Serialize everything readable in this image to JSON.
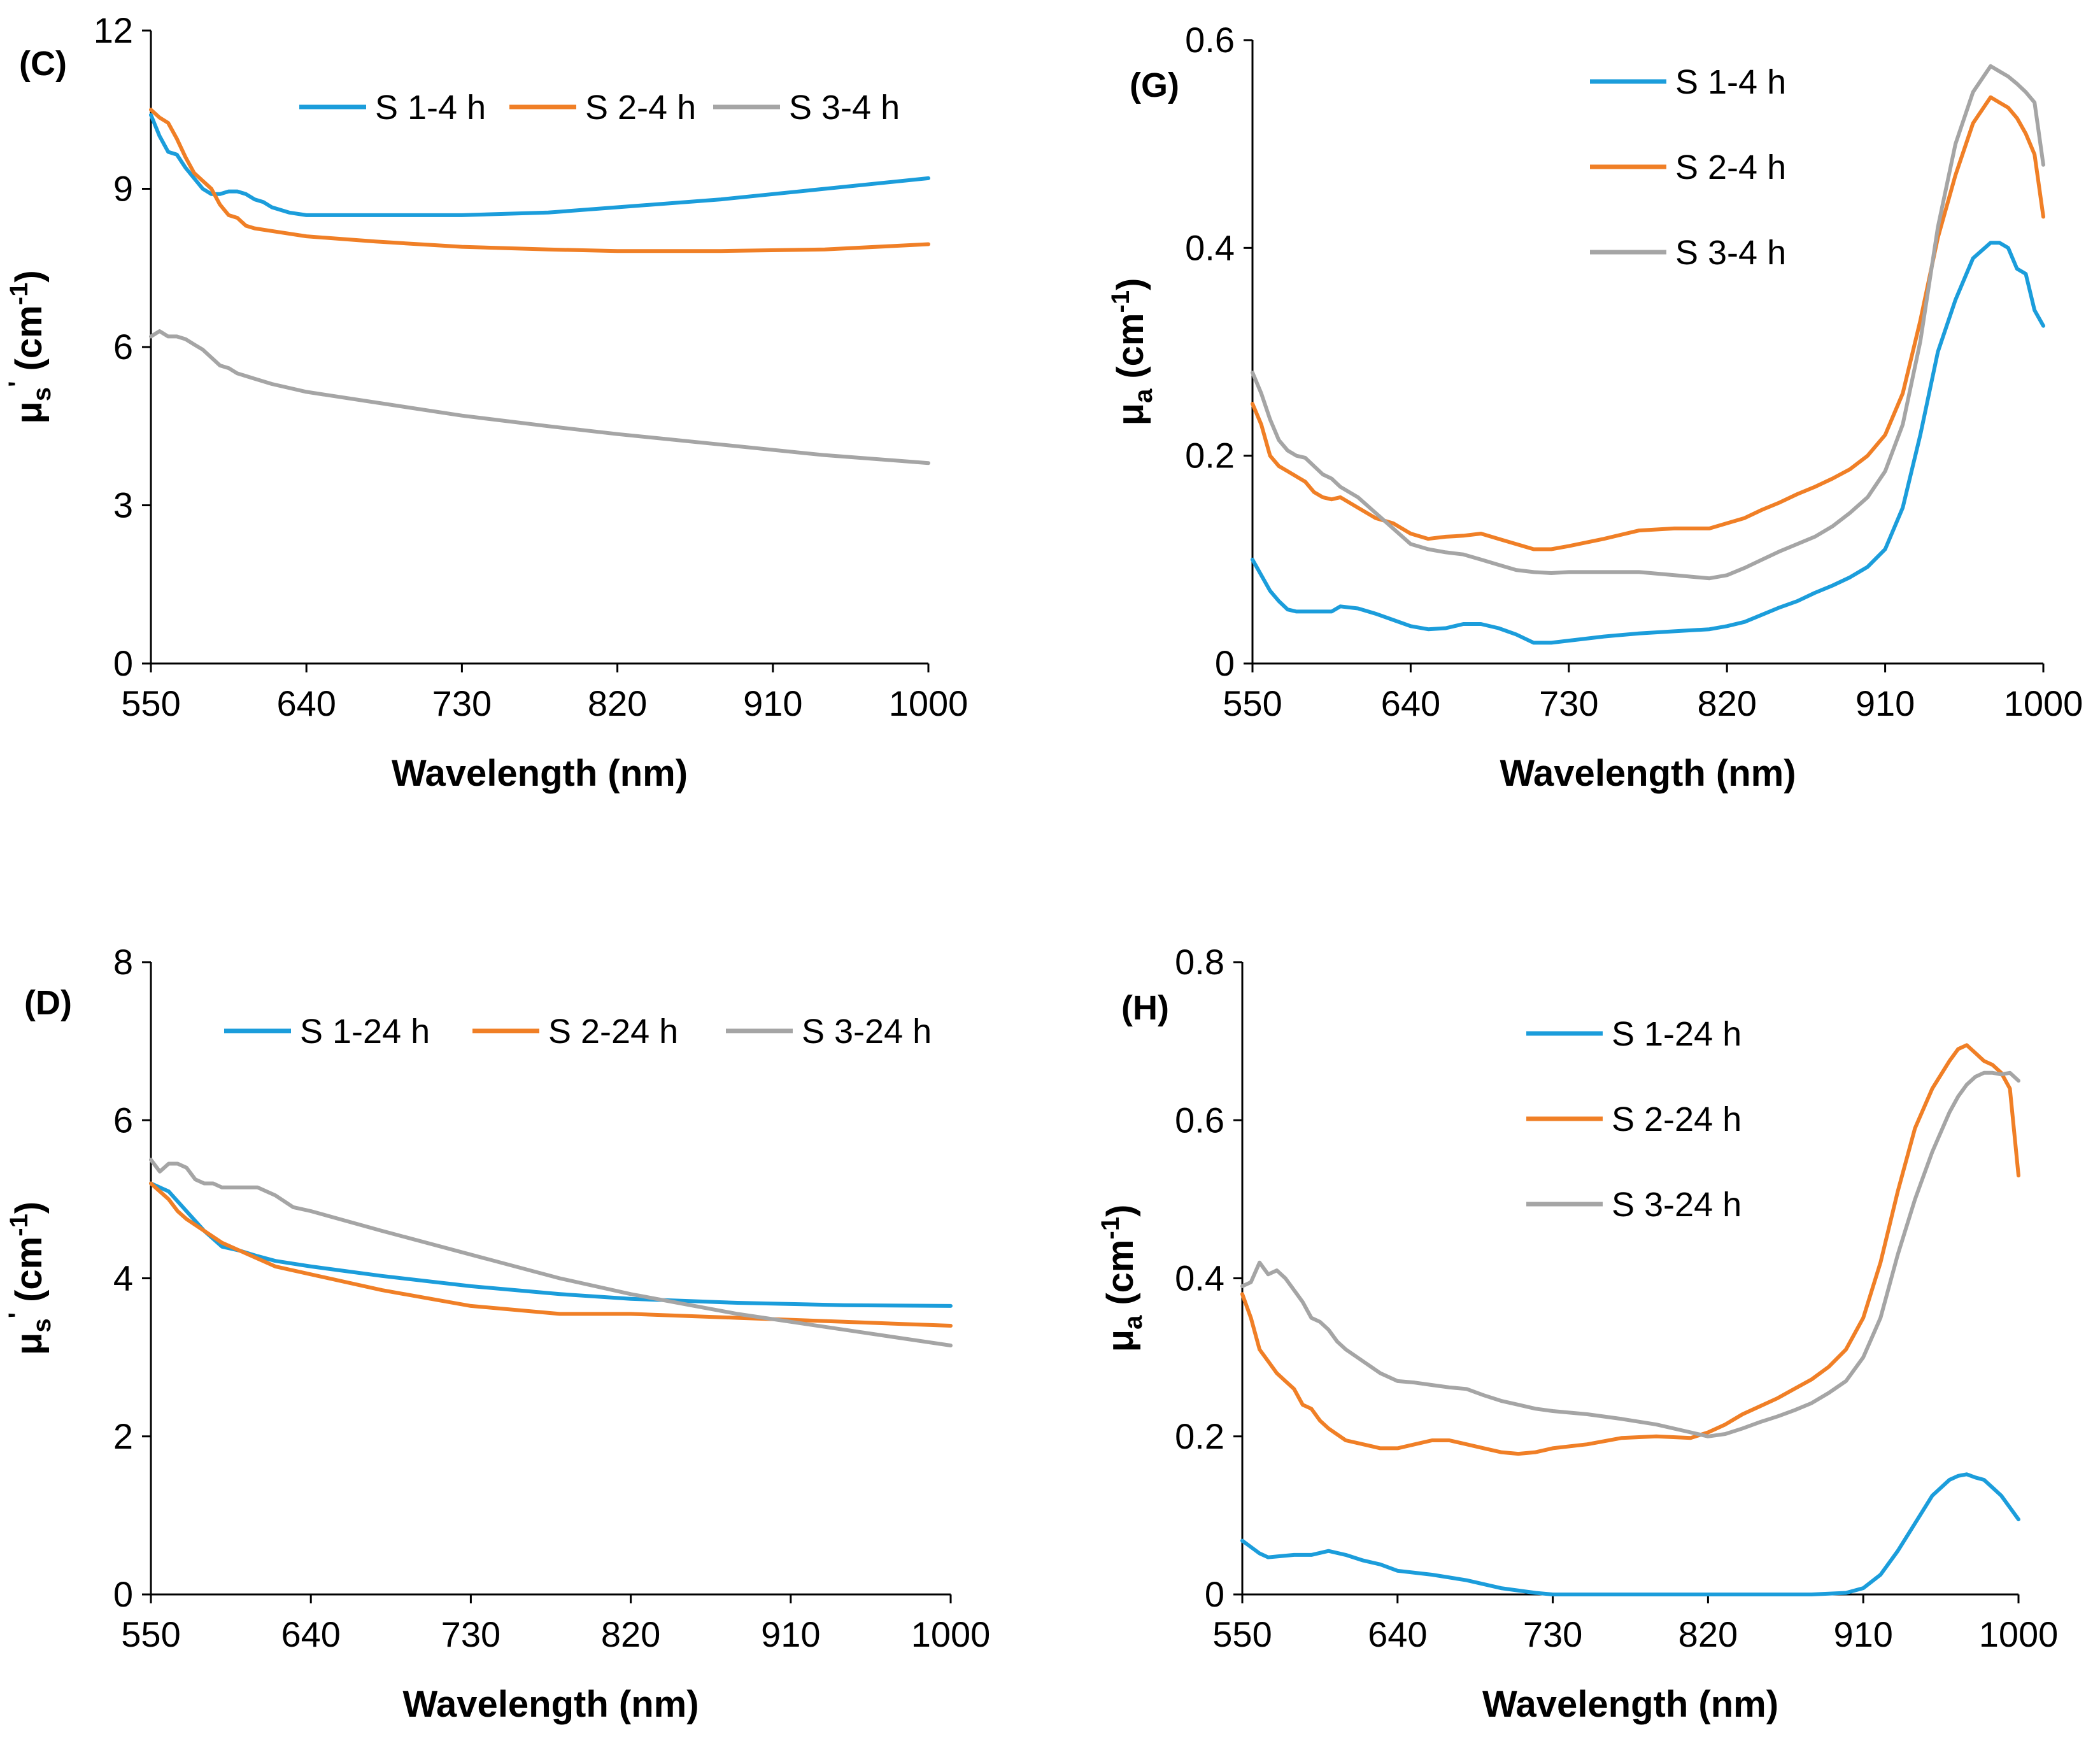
{
  "colors": {
    "blue": "#1b9ddb",
    "orange": "#f07f26",
    "gray": "#a5a5a5"
  },
  "chart_data": [
    {
      "type": "line",
      "panel_label": "(C)",
      "xlabel": "Wavelength (nm)",
      "ylabel": {
        "main": "μ",
        "sub": "s",
        "prime": "'",
        "unit": "(cm",
        "exp": "-1",
        "close": ")"
      },
      "xlim": [
        550,
        1000
      ],
      "ylim": [
        0,
        12
      ],
      "xticks": [
        "550",
        "640",
        "730",
        "820",
        "910",
        "1000"
      ],
      "yticks": [
        "0",
        "3",
        "6",
        "9",
        "12"
      ],
      "legend_position": "top-horizontal",
      "series": [
        {
          "name": "S 1-4 h",
          "color": "#1b9ddb",
          "x": [
            550,
            555,
            560,
            565,
            570,
            575,
            580,
            585,
            590,
            595,
            600,
            605,
            610,
            615,
            620,
            625,
            630,
            640,
            680,
            730,
            780,
            820,
            880,
            940,
            1000
          ],
          "y": [
            10.4,
            10.0,
            9.7,
            9.65,
            9.4,
            9.2,
            9.0,
            8.9,
            8.9,
            8.95,
            8.95,
            8.9,
            8.8,
            8.75,
            8.65,
            8.6,
            8.55,
            8.5,
            8.5,
            8.5,
            8.55,
            8.65,
            8.8,
            9.0,
            9.2
          ]
        },
        {
          "name": "S 2-4 h",
          "color": "#f07f26",
          "x": [
            550,
            555,
            560,
            565,
            570,
            575,
            580,
            585,
            590,
            595,
            600,
            605,
            610,
            620,
            640,
            680,
            730,
            780,
            820,
            880,
            940,
            1000
          ],
          "y": [
            10.5,
            10.35,
            10.25,
            9.95,
            9.6,
            9.3,
            9.15,
            9.0,
            8.7,
            8.5,
            8.45,
            8.3,
            8.25,
            8.2,
            8.1,
            8.0,
            7.9,
            7.85,
            7.82,
            7.82,
            7.85,
            7.95
          ]
        },
        {
          "name": "S 3-4 h",
          "color": "#a5a5a5",
          "x": [
            550,
            555,
            560,
            565,
            570,
            575,
            580,
            585,
            590,
            595,
            600,
            610,
            620,
            640,
            680,
            730,
            780,
            820,
            880,
            940,
            1000
          ],
          "y": [
            6.2,
            6.3,
            6.2,
            6.2,
            6.15,
            6.05,
            5.95,
            5.8,
            5.65,
            5.6,
            5.5,
            5.4,
            5.3,
            5.15,
            4.95,
            4.7,
            4.5,
            4.35,
            4.15,
            3.95,
            3.8
          ]
        }
      ]
    },
    {
      "type": "line",
      "panel_label": "(G)",
      "xlabel": "Wavelength (nm)",
      "ylabel": {
        "main": "μ",
        "sub": "a",
        "prime": "",
        "unit": "(cm",
        "exp": "-1",
        "close": ")"
      },
      "xlim": [
        550,
        1000
      ],
      "ylim": [
        0,
        0.6
      ],
      "xticks": [
        "550",
        "640",
        "730",
        "820",
        "910",
        "1000"
      ],
      "yticks": [
        "0",
        "0.2",
        "0.4",
        "0.6"
      ],
      "legend_position": "top-right-vertical",
      "series": [
        {
          "name": "S 1-4 h",
          "color": "#1b9ddb",
          "x": [
            550,
            555,
            560,
            565,
            570,
            575,
            580,
            585,
            590,
            595,
            600,
            610,
            620,
            630,
            640,
            650,
            660,
            670,
            680,
            690,
            700,
            710,
            720,
            730,
            750,
            770,
            790,
            810,
            820,
            830,
            840,
            850,
            860,
            870,
            880,
            890,
            900,
            910,
            920,
            930,
            940,
            950,
            960,
            970,
            975,
            980,
            985,
            990,
            995,
            1000
          ],
          "y": [
            0.1,
            0.085,
            0.07,
            0.06,
            0.052,
            0.05,
            0.05,
            0.05,
            0.05,
            0.05,
            0.055,
            0.053,
            0.048,
            0.042,
            0.036,
            0.033,
            0.034,
            0.038,
            0.038,
            0.034,
            0.028,
            0.02,
            0.02,
            0.022,
            0.026,
            0.029,
            0.031,
            0.033,
            0.036,
            0.04,
            0.047,
            0.054,
            0.06,
            0.068,
            0.075,
            0.083,
            0.093,
            0.11,
            0.15,
            0.22,
            0.3,
            0.35,
            0.39,
            0.405,
            0.405,
            0.4,
            0.38,
            0.375,
            0.34,
            0.325
          ]
        },
        {
          "name": "S 2-4 h",
          "color": "#f07f26",
          "x": [
            550,
            555,
            560,
            565,
            570,
            575,
            580,
            585,
            590,
            595,
            600,
            610,
            620,
            630,
            640,
            650,
            660,
            670,
            680,
            690,
            700,
            710,
            720,
            730,
            750,
            770,
            790,
            810,
            820,
            830,
            840,
            850,
            860,
            870,
            880,
            890,
            900,
            910,
            920,
            930,
            940,
            950,
            960,
            970,
            975,
            980,
            985,
            990,
            995,
            1000
          ],
          "y": [
            0.25,
            0.23,
            0.2,
            0.19,
            0.185,
            0.18,
            0.175,
            0.165,
            0.16,
            0.158,
            0.16,
            0.15,
            0.14,
            0.135,
            0.125,
            0.12,
            0.122,
            0.123,
            0.125,
            0.12,
            0.115,
            0.11,
            0.11,
            0.113,
            0.12,
            0.128,
            0.13,
            0.13,
            0.135,
            0.14,
            0.148,
            0.155,
            0.163,
            0.17,
            0.178,
            0.187,
            0.2,
            0.22,
            0.26,
            0.33,
            0.41,
            0.47,
            0.52,
            0.545,
            0.54,
            0.535,
            0.525,
            0.51,
            0.49,
            0.43
          ]
        },
        {
          "name": "S 3-4 h",
          "color": "#a5a5a5",
          "x": [
            550,
            555,
            560,
            565,
            570,
            575,
            580,
            585,
            590,
            595,
            600,
            610,
            620,
            630,
            640,
            650,
            660,
            670,
            680,
            690,
            700,
            710,
            720,
            730,
            750,
            770,
            790,
            810,
            820,
            830,
            840,
            850,
            860,
            870,
            880,
            890,
            900,
            910,
            920,
            930,
            940,
            950,
            960,
            970,
            975,
            980,
            985,
            990,
            995,
            1000
          ],
          "y": [
            0.28,
            0.26,
            0.235,
            0.215,
            0.205,
            0.2,
            0.198,
            0.19,
            0.182,
            0.178,
            0.17,
            0.16,
            0.145,
            0.13,
            0.115,
            0.11,
            0.107,
            0.105,
            0.1,
            0.095,
            0.09,
            0.088,
            0.087,
            0.088,
            0.088,
            0.088,
            0.085,
            0.082,
            0.085,
            0.092,
            0.1,
            0.108,
            0.115,
            0.122,
            0.132,
            0.145,
            0.16,
            0.185,
            0.23,
            0.31,
            0.42,
            0.5,
            0.55,
            0.575,
            0.57,
            0.565,
            0.558,
            0.55,
            0.54,
            0.48
          ]
        }
      ]
    },
    {
      "type": "line",
      "panel_label": "(D)",
      "xlabel": "Wavelength (nm)",
      "ylabel": {
        "main": "μ",
        "sub": "s",
        "prime": "'",
        "unit": "(cm",
        "exp": "-1",
        "close": ")"
      },
      "xlim": [
        550,
        1000
      ],
      "ylim": [
        0,
        8
      ],
      "xticks": [
        "550",
        "640",
        "730",
        "820",
        "910",
        "1000"
      ],
      "yticks": [
        "0",
        "2",
        "4",
        "6",
        "8"
      ],
      "legend_position": "top-horizontal",
      "series": [
        {
          "name": "S 1-24 h",
          "color": "#1b9ddb",
          "x": [
            550,
            560,
            570,
            580,
            590,
            600,
            610,
            620,
            640,
            680,
            730,
            780,
            820,
            880,
            940,
            1000
          ],
          "y": [
            5.2,
            5.1,
            4.85,
            4.6,
            4.4,
            4.35,
            4.28,
            4.22,
            4.15,
            4.03,
            3.9,
            3.8,
            3.74,
            3.69,
            3.66,
            3.65
          ]
        },
        {
          "name": "S 2-24 h",
          "color": "#f07f26",
          "x": [
            550,
            560,
            565,
            570,
            580,
            590,
            600,
            610,
            620,
            640,
            680,
            730,
            780,
            820,
            880,
            940,
            1000
          ],
          "y": [
            5.2,
            5.0,
            4.85,
            4.75,
            4.6,
            4.45,
            4.35,
            4.25,
            4.15,
            4.05,
            3.85,
            3.65,
            3.55,
            3.55,
            3.5,
            3.45,
            3.4
          ]
        },
        {
          "name": "S 3-24 h",
          "color": "#a5a5a5",
          "x": [
            550,
            555,
            560,
            565,
            570,
            575,
            580,
            585,
            590,
            600,
            610,
            620,
            630,
            640,
            680,
            730,
            780,
            820,
            880,
            940,
            1000
          ],
          "y": [
            5.5,
            5.35,
            5.45,
            5.45,
            5.4,
            5.25,
            5.2,
            5.2,
            5.15,
            5.15,
            5.15,
            5.05,
            4.9,
            4.85,
            4.6,
            4.3,
            4.0,
            3.8,
            3.55,
            3.35,
            3.15
          ]
        }
      ]
    },
    {
      "type": "line",
      "panel_label": "(H)",
      "xlabel": "Wavelength (nm)",
      "ylabel": {
        "main": "μ",
        "sub": "a",
        "prime": "",
        "unit": "(cm",
        "exp": "-1",
        "close": ")"
      },
      "xlim": [
        550,
        1000
      ],
      "ylim": [
        0,
        0.8
      ],
      "xticks": [
        "550",
        "640",
        "730",
        "820",
        "910",
        "1000"
      ],
      "yticks": [
        "0",
        "0.2",
        "0.4",
        "0.6",
        "0.8"
      ],
      "legend_position": "top-right-vertical",
      "series": [
        {
          "name": "S 1-24 h",
          "color": "#1b9ddb",
          "x": [
            550,
            555,
            560,
            565,
            570,
            580,
            590,
            600,
            610,
            620,
            630,
            640,
            660,
            680,
            700,
            720,
            730,
            780,
            830,
            880,
            900,
            910,
            920,
            930,
            940,
            950,
            960,
            965,
            970,
            975,
            980,
            985,
            990,
            995,
            1000
          ],
          "y": [
            0.068,
            0.06,
            0.052,
            0.047,
            0.048,
            0.05,
            0.05,
            0.055,
            0.05,
            0.043,
            0.038,
            0.03,
            0.025,
            0.018,
            0.008,
            0.002,
            0.0,
            0.0,
            0.0,
            0.0,
            0.002,
            0.008,
            0.025,
            0.055,
            0.09,
            0.125,
            0.145,
            0.15,
            0.152,
            0.148,
            0.145,
            0.135,
            0.125,
            0.11,
            0.095
          ]
        },
        {
          "name": "S 2-24 h",
          "color": "#f07f26",
          "x": [
            550,
            555,
            560,
            565,
            570,
            575,
            580,
            585,
            590,
            595,
            600,
            610,
            620,
            630,
            640,
            650,
            660,
            670,
            680,
            690,
            700,
            710,
            720,
            730,
            750,
            770,
            790,
            810,
            820,
            830,
            840,
            850,
            860,
            870,
            880,
            890,
            900,
            910,
            920,
            930,
            940,
            950,
            960,
            965,
            970,
            975,
            980,
            985,
            990,
            995,
            1000
          ],
          "y": [
            0.38,
            0.35,
            0.31,
            0.295,
            0.28,
            0.27,
            0.26,
            0.24,
            0.235,
            0.22,
            0.21,
            0.195,
            0.19,
            0.185,
            0.185,
            0.19,
            0.195,
            0.195,
            0.19,
            0.185,
            0.18,
            0.178,
            0.18,
            0.185,
            0.19,
            0.198,
            0.2,
            0.198,
            0.205,
            0.215,
            0.228,
            0.238,
            0.248,
            0.26,
            0.272,
            0.288,
            0.31,
            0.35,
            0.42,
            0.51,
            0.59,
            0.64,
            0.675,
            0.69,
            0.695,
            0.685,
            0.675,
            0.67,
            0.66,
            0.64,
            0.53
          ]
        },
        {
          "name": "S 3-24 h",
          "color": "#a5a5a5",
          "x": [
            550,
            555,
            560,
            565,
            570,
            575,
            580,
            585,
            590,
            595,
            600,
            605,
            610,
            620,
            630,
            640,
            650,
            660,
            670,
            680,
            690,
            700,
            710,
            720,
            730,
            750,
            770,
            790,
            810,
            820,
            830,
            840,
            850,
            860,
            870,
            880,
            890,
            900,
            910,
            920,
            930,
            940,
            950,
            960,
            965,
            970,
            975,
            980,
            985,
            990,
            995,
            1000
          ],
          "y": [
            0.39,
            0.395,
            0.42,
            0.405,
            0.41,
            0.4,
            0.385,
            0.37,
            0.35,
            0.345,
            0.335,
            0.32,
            0.31,
            0.295,
            0.28,
            0.27,
            0.268,
            0.265,
            0.262,
            0.26,
            0.252,
            0.245,
            0.24,
            0.235,
            0.232,
            0.228,
            0.222,
            0.215,
            0.205,
            0.2,
            0.203,
            0.21,
            0.218,
            0.225,
            0.233,
            0.242,
            0.255,
            0.27,
            0.3,
            0.35,
            0.43,
            0.5,
            0.56,
            0.61,
            0.63,
            0.645,
            0.655,
            0.66,
            0.66,
            0.658,
            0.66,
            0.65
          ]
        }
      ]
    }
  ]
}
